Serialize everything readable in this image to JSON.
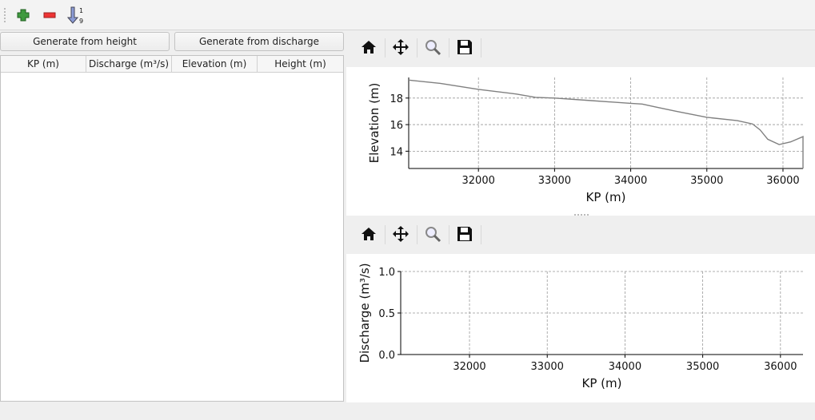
{
  "toolbar": {
    "icons": [
      "add-icon",
      "remove-icon",
      "sort-ascending-icon"
    ],
    "sort_top": "1",
    "sort_bottom": "9"
  },
  "buttons": {
    "from_height": "Generate from height",
    "from_discharge": "Generate from discharge"
  },
  "table": {
    "columns": [
      "KP (m)",
      "Discharge (m³/s)",
      "Elevation (m)",
      "Height (m)"
    ],
    "rows": []
  },
  "plot_toolbar": {
    "icons": [
      "home-icon",
      "pan-icon",
      "zoom-icon",
      "save-icon"
    ]
  },
  "chart_data": [
    {
      "type": "line",
      "xlabel": "KP (m)",
      "ylabel": "Elevation (m)",
      "xlim": [
        31084,
        36263
      ],
      "ylim": [
        12.7,
        19.55
      ],
      "xticks": [
        "32000",
        "33000",
        "34000",
        "35000",
        "36000"
      ],
      "yticks": [
        "14",
        "16",
        "18"
      ],
      "grid": true,
      "color": "#808080",
      "series": [
        {
          "x": [
            31084,
            31500,
            32000,
            32500,
            32750,
            33000,
            33500,
            34000,
            34150,
            34350,
            34600,
            35000,
            35400,
            35600,
            35700,
            35800,
            35950,
            36100,
            36263,
            36263
          ],
          "y": [
            19.35,
            19.1,
            18.65,
            18.3,
            18.05,
            18.0,
            17.8,
            17.6,
            17.55,
            17.3,
            17.0,
            16.55,
            16.3,
            16.05,
            15.6,
            14.9,
            14.5,
            14.7,
            15.1,
            12.7
          ]
        }
      ]
    },
    {
      "type": "line",
      "xlabel": "KP (m)",
      "ylabel": "Discharge (m³/s)",
      "xlim": [
        31115,
        36290
      ],
      "ylim": [
        0,
        1
      ],
      "xticks": [
        "32000",
        "33000",
        "34000",
        "35000",
        "36000"
      ],
      "yticks": [
        "0.0",
        "0.5",
        "1.0"
      ],
      "grid": true,
      "series": []
    }
  ]
}
